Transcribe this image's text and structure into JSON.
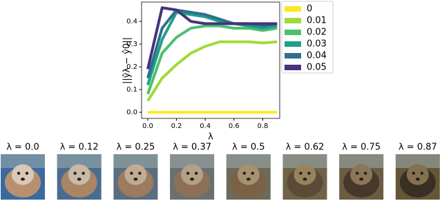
{
  "chart_data": {
    "type": "line",
    "ylabel": "||ŷλ − ŷ0||",
    "xlabel": "λ",
    "x": [
      0,
      0.1,
      0.2,
      0.3,
      0.4,
      0.5,
      0.6,
      0.7,
      0.8,
      0.9
    ],
    "series": [
      {
        "name": "0",
        "color": "#fde725",
        "values": [
          0,
          0,
          0,
          0,
          0,
          0,
          0,
          0,
          0,
          0
        ]
      },
      {
        "name": "0.01",
        "color": "#a0da39",
        "values": [
          0.05,
          0.15,
          0.21,
          0.26,
          0.29,
          0.31,
          0.31,
          0.31,
          0.305,
          0.31
        ]
      },
      {
        "name": "0.02",
        "color": "#4ac16d",
        "values": [
          0.08,
          0.26,
          0.33,
          0.37,
          0.38,
          0.38,
          0.37,
          0.37,
          0.36,
          0.37
        ]
      },
      {
        "name": "0.03",
        "color": "#1fa187",
        "values": [
          0.12,
          0.32,
          0.44,
          0.43,
          0.42,
          0.4,
          0.39,
          0.38,
          0.37,
          0.38
        ]
      },
      {
        "name": "0.04",
        "color": "#2e6f8e",
        "values": [
          0.15,
          0.37,
          0.45,
          0.44,
          0.43,
          0.41,
          0.39,
          0.39,
          0.38,
          0.39
        ]
      },
      {
        "name": "0.05",
        "color": "#46327e",
        "values": [
          0.19,
          0.46,
          0.45,
          0.4,
          0.39,
          0.39,
          0.39,
          0.39,
          0.39,
          0.39
        ]
      }
    ],
    "xlim": [
      -0.043,
      0.918
    ],
    "ylim": [
      -0.027,
      0.485
    ],
    "xticks": [
      {
        "value": 0,
        "label": "0.0"
      },
      {
        "value": 0.2,
        "label": "0.2"
      },
      {
        "value": 0.4,
        "label": "0.4"
      },
      {
        "value": 0.6,
        "label": "0.6"
      },
      {
        "value": 0.8,
        "label": "0.8"
      }
    ],
    "yticks": [
      {
        "value": 0,
        "label": "0.0"
      },
      {
        "value": 0.1,
        "label": "0.1"
      },
      {
        "value": 0.2,
        "label": "0.2"
      },
      {
        "value": 0.3,
        "label": "0.3"
      },
      {
        "value": 0.4,
        "label": "0.4"
      }
    ],
    "legend": "outside-right"
  },
  "panels": [
    {
      "title": "λ = 0.0"
    },
    {
      "title": "λ = 0.12"
    },
    {
      "title": "λ = 0.25"
    },
    {
      "title": "λ = 0.37"
    },
    {
      "title": "λ = 0.5"
    },
    {
      "title": "λ = 0.62"
    },
    {
      "title": "λ = 0.75"
    },
    {
      "title": "λ = 0.87"
    }
  ]
}
